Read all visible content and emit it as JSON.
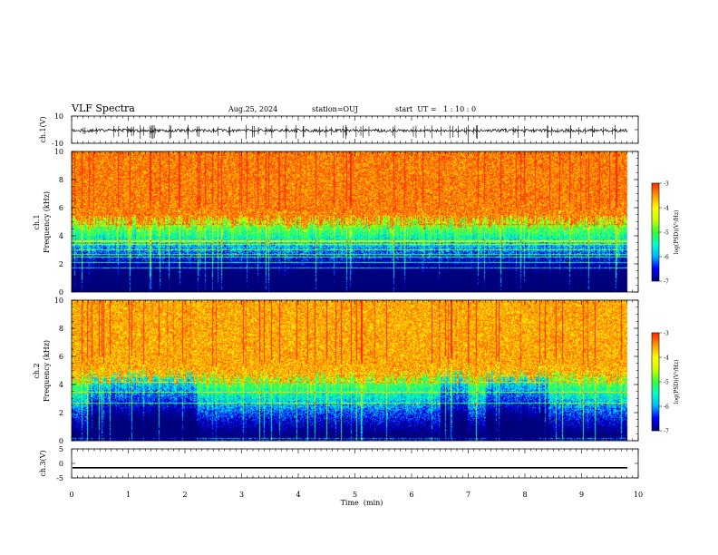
{
  "header": {
    "title": "VLF Spectra",
    "date": "Aug.25, 2024",
    "station": "station=OUJ",
    "start_ut": "start  UT =   1 : 10 : 0"
  },
  "chart_data": [
    {
      "type": "line",
      "panel": "ch1-waveform",
      "ylabel": "ch.1(V)",
      "ylim": [
        -10,
        10
      ],
      "yticks": [
        "10",
        "-10"
      ],
      "xlim": [
        0,
        10
      ],
      "baseline": 0
    },
    {
      "type": "heatmap",
      "panel": "ch1-spectrogram",
      "ylabel": "ch.1\nFrequency  (kHz)",
      "ylim": [
        0,
        10
      ],
      "yticks": [
        "0",
        "2",
        "4",
        "6",
        "8",
        "10"
      ],
      "xlim": [
        0,
        10
      ],
      "data_end_min": 9.8,
      "colorbar": {
        "label": "log(PSD)(V²/Hz)",
        "min": -7,
        "max": -3,
        "ticks": [
          "-3",
          "-4",
          "-5",
          "-6",
          "-7"
        ]
      },
      "profile": {
        "high_freq_level": -3.4,
        "low_freq_level": -6.6,
        "transition_khz": 5
      }
    },
    {
      "type": "heatmap",
      "panel": "ch2-spectrogram",
      "ylabel": "ch.2\nFrequency  (kHz)",
      "ylim": [
        0,
        10
      ],
      "yticks": [
        "0",
        "2",
        "4",
        "6",
        "8",
        "10"
      ],
      "xlim": [
        0,
        10
      ],
      "data_end_min": 9.8,
      "colorbar": {
        "label": "log(PSD)(V²/Hz)",
        "min": -7,
        "max": -3,
        "ticks": [
          "-3",
          "-4",
          "-5",
          "-6",
          "-7"
        ]
      },
      "profile": {
        "high_freq_level": -3.6,
        "low_freq_level": -5.9,
        "transition_khz": 4.5
      },
      "quiet_intervals_min": [
        [
          0.3,
          2.2
        ],
        [
          6.5,
          7.0
        ],
        [
          7.3,
          8.4
        ]
      ]
    },
    {
      "type": "line",
      "panel": "ch3-waveform",
      "ylabel": "ch.3(V)",
      "ylim": [
        -5,
        5
      ],
      "yticks": [
        "5",
        "0",
        "-5"
      ],
      "xlim": [
        0,
        10
      ],
      "constant_value": -1.5,
      "xlabel": "Time  (min)",
      "xticks": [
        "0",
        "1",
        "2",
        "3",
        "4",
        "5",
        "6",
        "7",
        "8",
        "9",
        "10"
      ]
    }
  ],
  "colors": {
    "scale": [
      "#00007a",
      "#0000ff",
      "#00b4ff",
      "#00ffcc",
      "#33ff33",
      "#ccff00",
      "#ffff00",
      "#ff9900",
      "#ff2a00"
    ],
    "line": "#000000"
  }
}
